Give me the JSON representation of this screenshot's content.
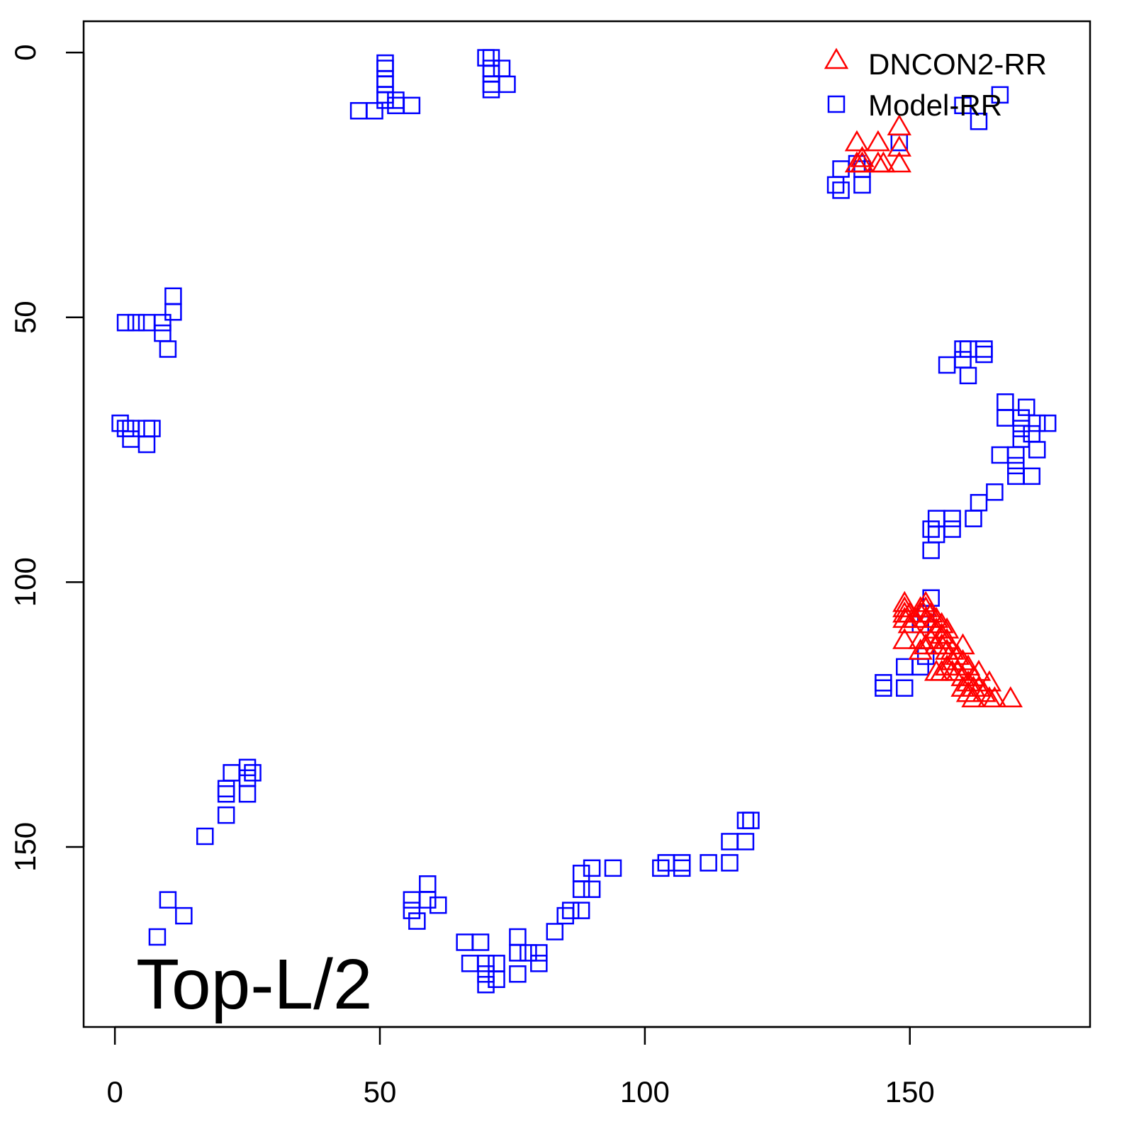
{
  "chart_data": {
    "type": "scatter",
    "title": "",
    "xlabel": "",
    "ylabel": "",
    "xlim": [
      -5.9,
      184
    ],
    "ylim": [
      -5.9,
      184
    ],
    "y_inverted": true,
    "grid": false,
    "x_ticks": [
      0,
      50,
      100,
      150
    ],
    "y_ticks": [
      0,
      50,
      100,
      150
    ],
    "x_tick_labels": [
      "0",
      "50",
      "100",
      "150"
    ],
    "y_tick_labels": [
      "0",
      "50",
      "100",
      "150"
    ],
    "annotation": "Top-L/2",
    "legend": {
      "placement": "top-right",
      "entries": [
        "DNCON2-RR",
        "Model-RR"
      ]
    },
    "series": [
      {
        "name": "DNCON2-RR",
        "marker": "triangle",
        "color": "#ff0000",
        "points": [
          [
            140,
            17
          ],
          [
            140,
            21
          ],
          [
            141,
            20
          ],
          [
            141,
            21
          ],
          [
            144,
            17
          ],
          [
            144,
            21
          ],
          [
            145,
            21
          ],
          [
            148,
            14
          ],
          [
            148,
            18
          ],
          [
            148,
            21
          ],
          [
            149,
            104
          ],
          [
            149,
            105
          ],
          [
            149,
            106
          ],
          [
            149,
            107
          ],
          [
            150,
            106
          ],
          [
            150,
            108
          ],
          [
            151,
            107
          ],
          [
            152,
            105
          ],
          [
            152,
            106
          ],
          [
            153,
            104
          ],
          [
            153,
            105
          ],
          [
            153,
            107
          ],
          [
            154,
            106
          ],
          [
            154,
            108
          ],
          [
            155,
            107
          ],
          [
            155,
            109
          ],
          [
            156,
            108
          ],
          [
            156,
            110
          ],
          [
            157,
            109
          ],
          [
            149,
            111
          ],
          [
            152,
            111
          ],
          [
            152,
            113
          ],
          [
            153,
            112
          ],
          [
            154,
            111
          ],
          [
            155,
            112
          ],
          [
            156,
            112
          ],
          [
            157,
            111
          ],
          [
            157,
            113
          ],
          [
            158,
            113
          ],
          [
            158,
            115
          ],
          [
            159,
            114
          ],
          [
            160,
            112
          ],
          [
            160,
            115
          ],
          [
            161,
            116
          ],
          [
            155,
            117
          ],
          [
            156,
            117
          ],
          [
            157,
            116
          ],
          [
            158,
            117
          ],
          [
            159,
            117
          ],
          [
            160,
            118
          ],
          [
            161,
            119
          ],
          [
            162,
            118
          ],
          [
            162,
            120
          ],
          [
            163,
            117
          ],
          [
            163,
            120
          ],
          [
            164,
            121
          ],
          [
            165,
            119
          ],
          [
            165,
            122
          ],
          [
            166,
            122
          ],
          [
            169,
            122
          ],
          [
            160,
            120
          ],
          [
            161,
            121
          ],
          [
            162,
            122
          ]
        ]
      },
      {
        "name": "Model-RR",
        "marker": "square",
        "color": "#0000ff",
        "points": [
          [
            51,
            2
          ],
          [
            51,
            3
          ],
          [
            51,
            5
          ],
          [
            51,
            6
          ],
          [
            51,
            8
          ],
          [
            51,
            9
          ],
          [
            46,
            11
          ],
          [
            49,
            11
          ],
          [
            53,
            9
          ],
          [
            53,
            10
          ],
          [
            56,
            10
          ],
          [
            70,
            1
          ],
          [
            71,
            1
          ],
          [
            71,
            3
          ],
          [
            71,
            4
          ],
          [
            71,
            6
          ],
          [
            71,
            7
          ],
          [
            73,
            3
          ],
          [
            74,
            6
          ],
          [
            136,
            25
          ],
          [
            137,
            26
          ],
          [
            137,
            22
          ],
          [
            141,
            25
          ],
          [
            141,
            22
          ],
          [
            140,
            21
          ],
          [
            148,
            17
          ],
          [
            160,
            10
          ],
          [
            163,
            13
          ],
          [
            167,
            8
          ],
          [
            2,
            51
          ],
          [
            4,
            51
          ],
          [
            6,
            51
          ],
          [
            9,
            51
          ],
          [
            9,
            53
          ],
          [
            10,
            56
          ],
          [
            11,
            46
          ],
          [
            11,
            49
          ],
          [
            1,
            70
          ],
          [
            2,
            71
          ],
          [
            3,
            71
          ],
          [
            3,
            73
          ],
          [
            6,
            71
          ],
          [
            6,
            74
          ],
          [
            7,
            71
          ],
          [
            157,
            59
          ],
          [
            160,
            56
          ],
          [
            160,
            58
          ],
          [
            161,
            61
          ],
          [
            164,
            56
          ],
          [
            164,
            57
          ],
          [
            161,
            56
          ],
          [
            168,
            66
          ],
          [
            168,
            69
          ],
          [
            172,
            67
          ],
          [
            171,
            69
          ],
          [
            171,
            71
          ],
          [
            171,
            73
          ],
          [
            174,
            70
          ],
          [
            176,
            70
          ],
          [
            173,
            72
          ],
          [
            174,
            75
          ],
          [
            167,
            76
          ],
          [
            170,
            76
          ],
          [
            170,
            78
          ],
          [
            170,
            80
          ],
          [
            173,
            80
          ],
          [
            166,
            83
          ],
          [
            163,
            85
          ],
          [
            162,
            88
          ],
          [
            158,
            88
          ],
          [
            158,
            90
          ],
          [
            155,
            88
          ],
          [
            154,
            90
          ],
          [
            155,
            91
          ],
          [
            154,
            94
          ],
          [
            154,
            103
          ],
          [
            153,
            106
          ],
          [
            152,
            108
          ],
          [
            153,
            114
          ],
          [
            152,
            116
          ],
          [
            149,
            116
          ],
          [
            145,
            119
          ],
          [
            145,
            120
          ],
          [
            149,
            120
          ],
          [
            21,
            139
          ],
          [
            21,
            140
          ],
          [
            21,
            144
          ],
          [
            22,
            136
          ],
          [
            25,
            135
          ],
          [
            25,
            137
          ],
          [
            25,
            140
          ],
          [
            26,
            136
          ],
          [
            17,
            148
          ],
          [
            10,
            160
          ],
          [
            13,
            163
          ],
          [
            8,
            167
          ],
          [
            56,
            160
          ],
          [
            56,
            162
          ],
          [
            57,
            164
          ],
          [
            59,
            157
          ],
          [
            59,
            160
          ],
          [
            61,
            161
          ],
          [
            66,
            168
          ],
          [
            67,
            172
          ],
          [
            69,
            168
          ],
          [
            70,
            172
          ],
          [
            70,
            174
          ],
          [
            70,
            176
          ],
          [
            72,
            172
          ],
          [
            72,
            175
          ],
          [
            76,
            167
          ],
          [
            76,
            170
          ],
          [
            76,
            174
          ],
          [
            78,
            170
          ],
          [
            80,
            170
          ],
          [
            80,
            172
          ],
          [
            83,
            166
          ],
          [
            85,
            163
          ],
          [
            86,
            162
          ],
          [
            88,
            162
          ],
          [
            88,
            158
          ],
          [
            88,
            155
          ],
          [
            90,
            158
          ],
          [
            90,
            154
          ],
          [
            94,
            154
          ],
          [
            103,
            154
          ],
          [
            104,
            153
          ],
          [
            107,
            153
          ],
          [
            107,
            154
          ],
          [
            112,
            153
          ],
          [
            116,
            153
          ],
          [
            116,
            149
          ],
          [
            119,
            149
          ],
          [
            119,
            145
          ],
          [
            120,
            145
          ]
        ]
      }
    ]
  }
}
